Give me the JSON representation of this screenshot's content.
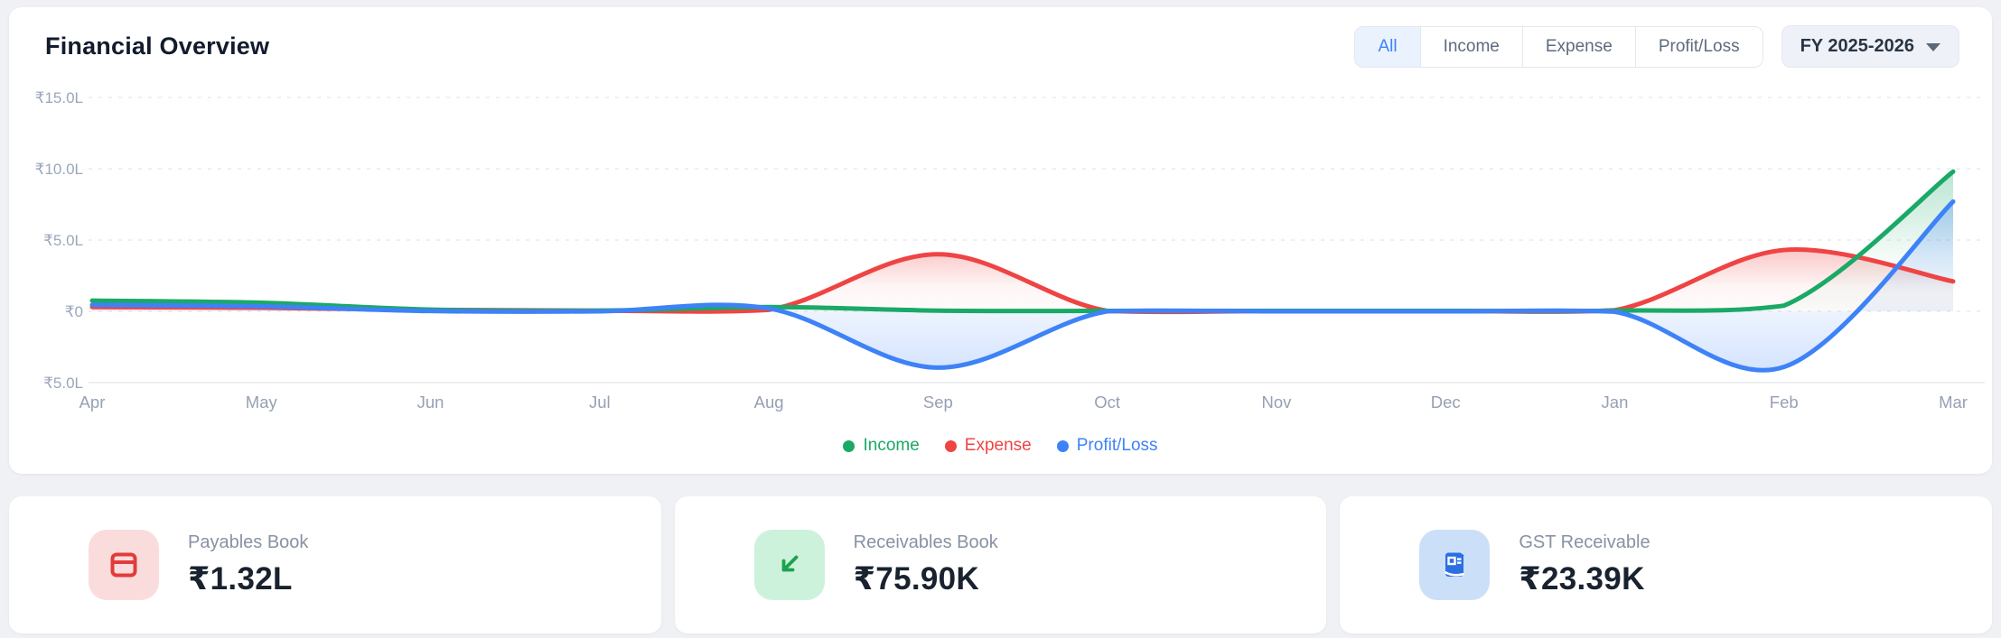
{
  "page": {
    "background": "#F0F1F4"
  },
  "header": {
    "title": "Financial Overview",
    "tabs": [
      {
        "label": "All",
        "active": true
      },
      {
        "label": "Income",
        "active": false
      },
      {
        "label": "Expense",
        "active": false
      },
      {
        "label": "Profit/Loss",
        "active": false
      }
    ],
    "fiscal_year_selector": {
      "value": "FY 2025-2026",
      "icon": "chevron-down-icon"
    }
  },
  "chart_data": {
    "type": "area",
    "title": "Financial Overview",
    "unit": "INR, L = lakh",
    "x": [
      "Apr",
      "May",
      "Jun",
      "Jul",
      "Aug",
      "Sep",
      "Oct",
      "Nov",
      "Dec",
      "Jan",
      "Feb",
      "Mar"
    ],
    "series": [
      {
        "name": "Income",
        "color": "#1AA967",
        "values": [
          0.75,
          0.6,
          0.12,
          0.05,
          0.3,
          0.05,
          0.03,
          0.03,
          0.03,
          0.05,
          0.4,
          9.8
        ]
      },
      {
        "name": "Expense",
        "color": "#EF4444",
        "values": [
          0.3,
          0.25,
          0.1,
          0.05,
          0.1,
          4.0,
          0.03,
          0.03,
          0.03,
          0.08,
          4.3,
          2.1
        ]
      },
      {
        "name": "Profit/Loss",
        "color": "#3E82F7",
        "values": [
          0.45,
          0.35,
          0.02,
          0,
          0.2,
          -3.95,
          0,
          0,
          0,
          -0.03,
          -3.9,
          7.7
        ]
      }
    ],
    "y_ticks": [
      {
        "value": 15,
        "label": "₹15.0L"
      },
      {
        "value": 10,
        "label": "₹10.0L"
      },
      {
        "value": 5,
        "label": "₹5.0L"
      },
      {
        "value": 0,
        "label": "₹0"
      },
      {
        "value": -5,
        "label": "₹5.0L"
      }
    ],
    "ylim_lakh": [
      -5.7,
      16.2
    ],
    "grid": "horizontal dashed",
    "legend_position": "bottom-center"
  },
  "cards": [
    {
      "label": "Payables Book",
      "value": "₹1.32L",
      "icon": "ledger-book-icon",
      "accent": "#E23B3B",
      "tile_background": "#FBDCDC"
    },
    {
      "label": "Receivables Book",
      "value": "₹75.90K",
      "icon": "arrow-down-left-icon",
      "accent": "#1CA350",
      "tile_background": "#CDF2DB"
    },
    {
      "label": "GST Receivable",
      "value": "₹23.39K",
      "icon": "receipt-icon",
      "accent": "#2B6FE3",
      "tile_background": "#CBDFF9"
    }
  ]
}
